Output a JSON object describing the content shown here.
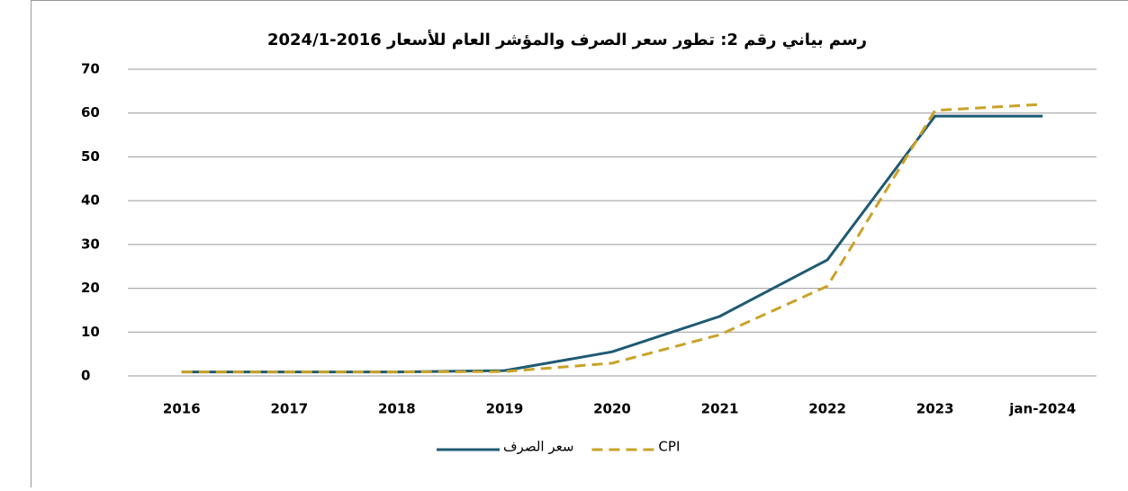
{
  "chart_data": {
    "type": "line",
    "title": "رسم بياني رقم 2: تطور سعر الصرف والمؤشر العام للأسعار 2016-2024/1",
    "categories": [
      "2016",
      "2017",
      "2018",
      "2019",
      "2020",
      "2021",
      "2022",
      "2023",
      "jan-2024"
    ],
    "series": [
      {
        "name": "سعر الصرف",
        "color": "#1f5a73",
        "dashed": false,
        "values": [
          0.9,
          0.9,
          0.9,
          1.2,
          5.5,
          13.6,
          26.5,
          59.3,
          59.3
        ]
      },
      {
        "name": "CPI",
        "color": "#c9a227",
        "dashed": true,
        "values": [
          0.9,
          0.9,
          0.9,
          1.0,
          2.9,
          9.4,
          20.5,
          60.6,
          62
        ]
      }
    ],
    "ylim": [
      0,
      70
    ],
    "yticks": [
      0,
      10,
      20,
      30,
      40,
      50,
      60,
      70
    ],
    "grid": true,
    "legend": "bottom"
  }
}
